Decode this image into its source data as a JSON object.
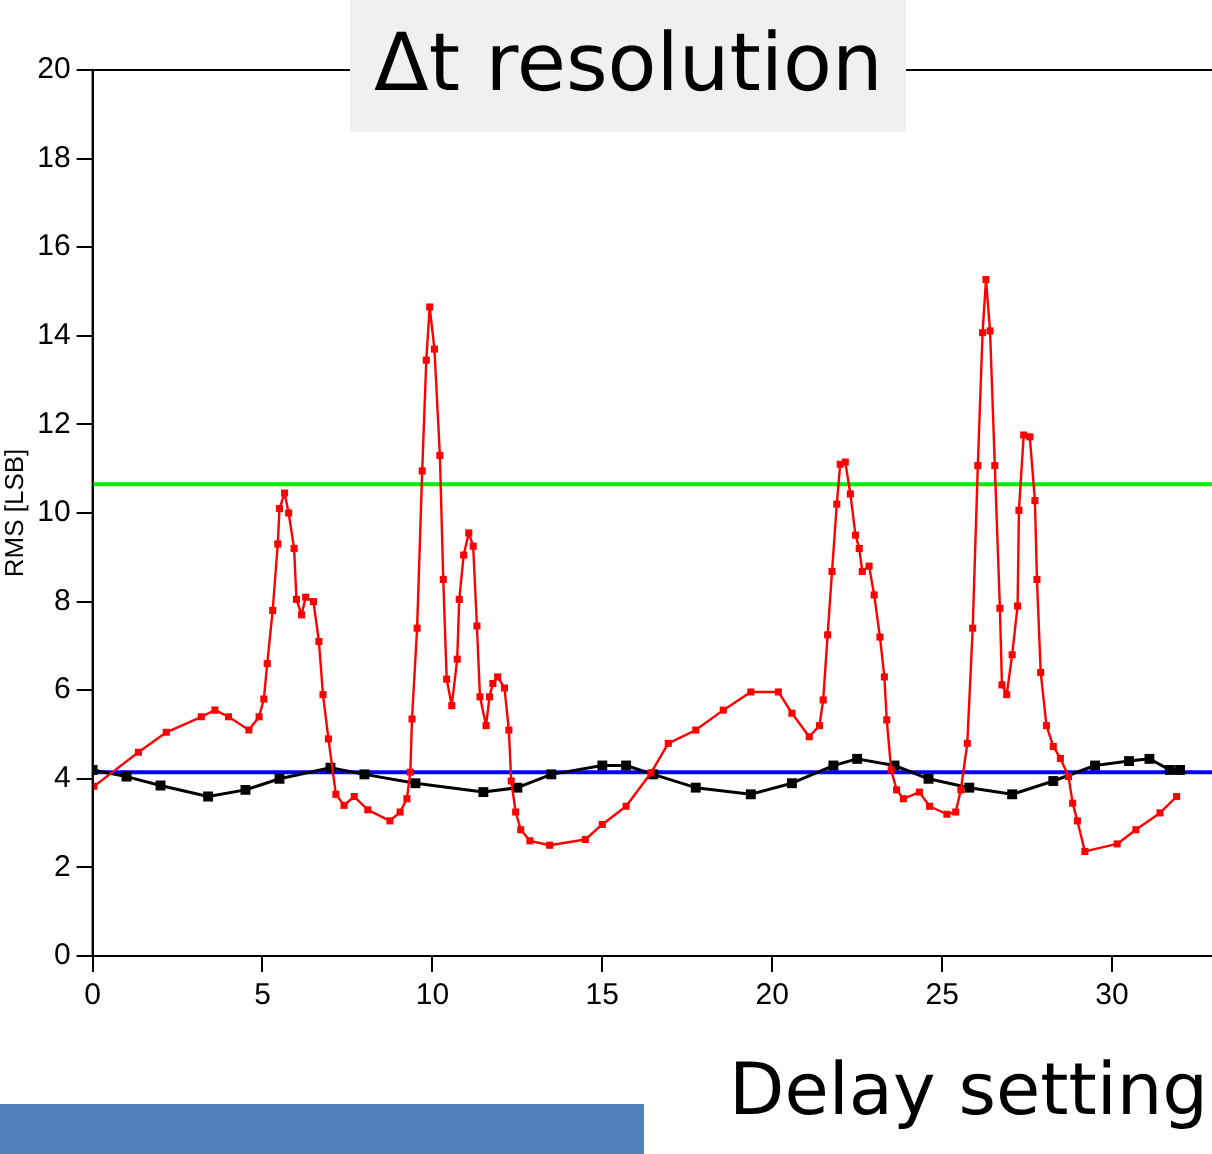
{
  "chart_data": {
    "type": "line",
    "title": "Δt resolution",
    "xlabel": "Delay setting",
    "ylabel": "RMS [LSB]",
    "xlim": [
      0,
      33
    ],
    "xticks": [
      0,
      5,
      10,
      15,
      20,
      25,
      30
    ],
    "ylim": [
      0,
      20
    ],
    "yticks": [
      0,
      2,
      4,
      6,
      8,
      10,
      12,
      14,
      16,
      18,
      20
    ],
    "grid": false,
    "legend": false,
    "marker": "square",
    "line_style": "solid",
    "series": [
      {
        "color": "#ff0000",
        "x": [
          0.04,
          1.35,
          2.17,
          3.2,
          3.6,
          4.0,
          4.6,
          4.9,
          5.04,
          5.14,
          5.3,
          5.45,
          5.5,
          5.65,
          5.77,
          5.93,
          6.0,
          6.15,
          6.27,
          6.5,
          6.66,
          6.78,
          6.94,
          7.16,
          7.4,
          7.7,
          8.1,
          8.75,
          9.05,
          9.25,
          9.35,
          9.4,
          9.55,
          9.7,
          9.82,
          9.92,
          10.06,
          10.22,
          10.32,
          10.42,
          10.57,
          10.73,
          10.79,
          10.92,
          11.07,
          11.2,
          11.31,
          11.4,
          11.58,
          11.68,
          11.78,
          11.92,
          12.12,
          12.25,
          12.32,
          12.45,
          12.6,
          12.87,
          13.45,
          14.5,
          15.0,
          15.7,
          16.43,
          16.94,
          17.75,
          18.56,
          19.37,
          20.18,
          20.58,
          21.09,
          21.39,
          21.5,
          21.63,
          21.76,
          21.9,
          22.0,
          22.15,
          22.3,
          22.45,
          22.56,
          22.65,
          22.85,
          23.0,
          23.17,
          23.3,
          23.37,
          23.5,
          23.66,
          23.86,
          24.33,
          24.63,
          25.14,
          25.4,
          25.55,
          25.74,
          25.9,
          26.05,
          26.19,
          26.29,
          26.41,
          26.55,
          26.7,
          26.76,
          26.9,
          27.06,
          27.22,
          27.26,
          27.4,
          27.58,
          27.73,
          27.79,
          27.9,
          28.07,
          28.27,
          28.48,
          28.72,
          28.84,
          28.98,
          29.2,
          30.15,
          30.7,
          31.41,
          31.9
        ],
        "values": [
          3.83,
          4.6,
          5.05,
          5.4,
          5.55,
          5.4,
          5.1,
          5.4,
          5.8,
          6.6,
          7.8,
          9.3,
          10.1,
          10.45,
          10.0,
          9.2,
          8.05,
          7.7,
          8.1,
          8.0,
          7.1,
          5.9,
          4.9,
          3.65,
          3.4,
          3.6,
          3.3,
          3.05,
          3.25,
          3.55,
          4.15,
          5.35,
          7.4,
          10.95,
          13.45,
          14.65,
          13.7,
          11.3,
          8.5,
          6.25,
          5.65,
          6.7,
          8.05,
          9.05,
          9.55,
          9.25,
          7.45,
          5.85,
          5.2,
          5.85,
          6.15,
          6.3,
          6.05,
          5.1,
          3.95,
          3.25,
          2.85,
          2.6,
          2.5,
          2.63,
          2.97,
          3.38,
          4.13,
          4.8,
          5.1,
          5.55,
          5.96,
          5.96,
          5.48,
          4.95,
          5.2,
          5.78,
          7.25,
          8.68,
          10.2,
          11.1,
          11.15,
          10.43,
          9.5,
          9.2,
          8.68,
          8.8,
          8.15,
          7.2,
          6.3,
          5.33,
          4.2,
          3.75,
          3.55,
          3.7,
          3.38,
          3.2,
          3.25,
          3.75,
          4.8,
          7.4,
          11.07,
          14.07,
          15.27,
          14.11,
          11.07,
          7.85,
          6.12,
          5.9,
          6.8,
          7.9,
          10.06,
          11.76,
          11.72,
          10.28,
          8.5,
          6.4,
          5.2,
          4.73,
          4.46,
          4.05,
          3.45,
          3.05,
          2.36,
          2.53,
          2.85,
          3.23,
          3.6
        ]
      },
      {
        "color": "#000000",
        "x": [
          0,
          1,
          2,
          3.4,
          4.5,
          5.5,
          7,
          8,
          9.5,
          11.5,
          12.5,
          13.5,
          15,
          15.7,
          16.5,
          17.75,
          19.37,
          20.58,
          21.8,
          22.5,
          23.6,
          24.6,
          25.8,
          27.06,
          28.27,
          29.5,
          30.5,
          31.1,
          31.7,
          32
        ],
        "values": [
          4.2,
          4.05,
          3.85,
          3.6,
          3.75,
          4.0,
          4.25,
          4.1,
          3.9,
          3.7,
          3.8,
          4.1,
          4.3,
          4.3,
          4.1,
          3.8,
          3.65,
          3.9,
          4.3,
          4.45,
          4.3,
          4.0,
          3.8,
          3.65,
          3.95,
          4.3,
          4.4,
          4.45,
          4.2,
          4.2
        ]
      }
    ],
    "ref_lines": [
      {
        "axis": "y",
        "value": 10.65,
        "color": "#00ee00"
      },
      {
        "axis": "y",
        "value": 4.15,
        "color": "#0000ff"
      }
    ]
  }
}
